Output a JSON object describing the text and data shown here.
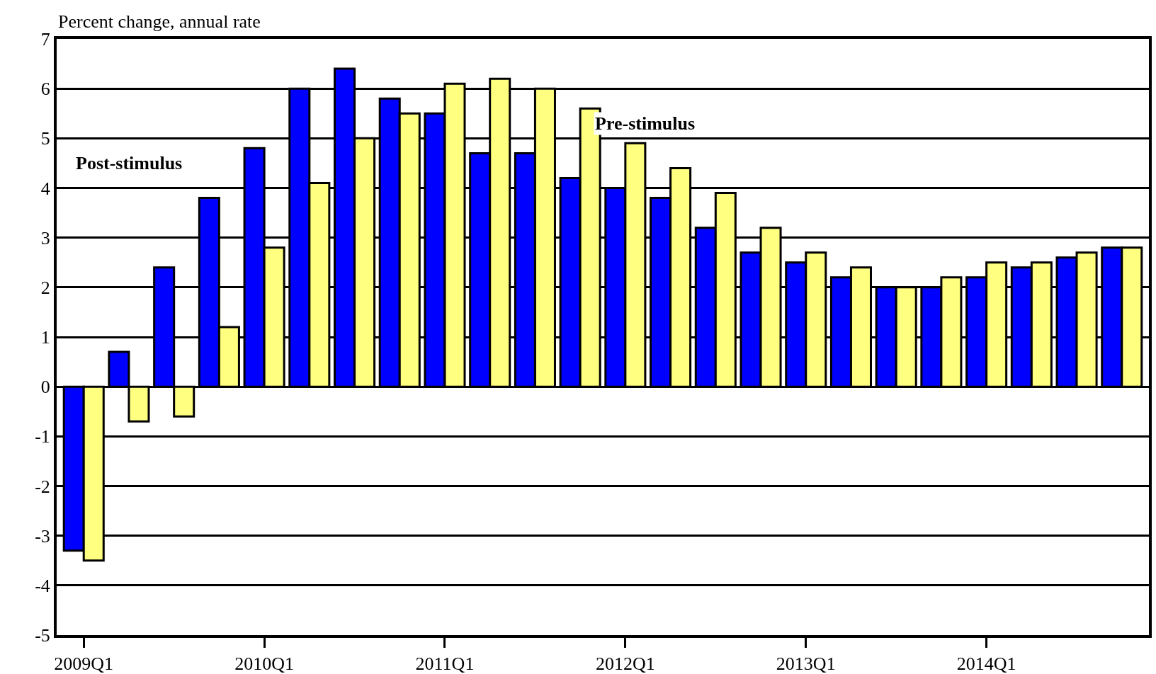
{
  "chart_data": {
    "type": "bar",
    "ylabel": "Percent change, annual rate",
    "categories": [
      "2009Q1",
      null,
      null,
      null,
      "2010Q1",
      null,
      null,
      null,
      "2011Q1",
      null,
      null,
      null,
      "2012Q1",
      null,
      null,
      null,
      "2013Q1",
      null,
      null,
      null,
      "2014Q1",
      null,
      null,
      null
    ],
    "series": [
      {
        "name": "Post-stimulus",
        "color": "#0000ff",
        "values": [
          -3.3,
          0.7,
          2.4,
          3.8,
          4.8,
          6.0,
          6.4,
          5.8,
          5.5,
          4.7,
          4.7,
          4.2,
          4.0,
          3.8,
          3.2,
          2.7,
          2.5,
          2.2,
          2.0,
          2.0,
          2.2,
          2.4,
          2.6,
          2.8
        ]
      },
      {
        "name": "Pre-stimulus",
        "color": "#ffff80",
        "values": [
          -3.5,
          -0.7,
          -0.6,
          1.2,
          2.8,
          4.1,
          5.0,
          5.5,
          6.1,
          6.2,
          6.0,
          5.6,
          4.9,
          4.4,
          3.9,
          3.2,
          2.7,
          2.4,
          2.0,
          2.2,
          2.5,
          2.5,
          2.7,
          2.8
        ]
      }
    ],
    "ylim": [
      -5,
      7
    ],
    "yticks": [
      -5,
      -4,
      -3,
      -2,
      -1,
      0,
      1,
      2,
      3,
      4,
      5,
      6,
      7
    ],
    "grid": "y",
    "legend": false
  }
}
